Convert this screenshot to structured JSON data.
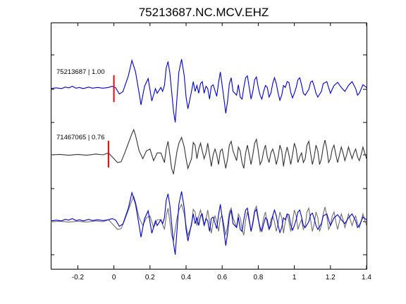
{
  "chart_data": {
    "type": "line",
    "title": "75213687.NC.MCV.EHZ",
    "xlabel": "",
    "ylabel": "",
    "xlim": [
      -0.35,
      1.4
    ],
    "x_ticks": [
      -0.2,
      0,
      0.2,
      0.4,
      0.6,
      0.8,
      1.0,
      1.2,
      1.4
    ],
    "x_tick_labels": [
      "-0.2",
      "0",
      "0.2",
      "0.4",
      "0.6",
      "0.8",
      "1",
      "1.2",
      "1.4"
    ],
    "grid": false,
    "colors": {
      "primary": "#0000cc",
      "secondary": "#333333",
      "overlay_secondary": "#707070",
      "pick": "#ff0000"
    },
    "traces": [
      {
        "label": "75213687 | 1.00",
        "color": "#0000cc",
        "pick_time": 0.0,
        "points": [
          [
            -0.35,
            0.02
          ],
          [
            -0.32,
            0.04
          ],
          [
            -0.29,
            0.02
          ],
          [
            -0.27,
            0.06
          ],
          [
            -0.25,
            0.04
          ],
          [
            -0.23,
            0.08
          ],
          [
            -0.21,
            0.03
          ],
          [
            -0.19,
            0.05
          ],
          [
            -0.17,
            0.02
          ],
          [
            -0.14,
            0.06
          ],
          [
            -0.12,
            0.03
          ],
          [
            -0.09,
            0.05
          ],
          [
            -0.06,
            0.03
          ],
          [
            -0.03,
            0.05
          ],
          [
            -0.01,
            0.08
          ],
          [
            0.01,
            0.04
          ],
          [
            0.03,
            -0.12
          ],
          [
            0.05,
            -0.06
          ],
          [
            0.08,
            0.35
          ],
          [
            0.1,
            0.75
          ],
          [
            0.12,
            0.45
          ],
          [
            0.14,
            -0.1
          ],
          [
            0.15,
            -0.4
          ],
          [
            0.17,
            0.08
          ],
          [
            0.19,
            0.28
          ],
          [
            0.21,
            -0.3
          ],
          [
            0.23,
            0.02
          ],
          [
            0.24,
            -0.1
          ],
          [
            0.26,
            0.05
          ],
          [
            0.27,
            -0.05
          ],
          [
            0.28,
            0.1
          ],
          [
            0.29,
            0.55
          ],
          [
            0.3,
            0.72
          ],
          [
            0.31,
            0.42
          ],
          [
            0.32,
            -0.05
          ],
          [
            0.33,
            -0.55
          ],
          [
            0.34,
            -0.85
          ],
          [
            0.35,
            -0.2
          ],
          [
            0.36,
            0.45
          ],
          [
            0.375,
            0.78
          ],
          [
            0.39,
            0.35
          ],
          [
            0.4,
            -0.2
          ],
          [
            0.41,
            -0.5
          ],
          [
            0.43,
            -0.05
          ],
          [
            0.44,
            0.2
          ],
          [
            0.45,
            -0.05
          ],
          [
            0.46,
            0.1
          ],
          [
            0.47,
            -0.1
          ],
          [
            0.48,
            0.15
          ],
          [
            0.49,
            0.2
          ],
          [
            0.5,
            -0.1
          ],
          [
            0.51,
            0.08
          ],
          [
            0.52,
            0.02
          ],
          [
            0.53,
            -0.25
          ],
          [
            0.54,
            0.08
          ],
          [
            0.55,
            0.12
          ],
          [
            0.57,
            -0.18
          ],
          [
            0.58,
            0.18
          ],
          [
            0.59,
            0.45
          ],
          [
            0.6,
            0.1
          ],
          [
            0.61,
            -0.25
          ],
          [
            0.62,
            -0.62
          ],
          [
            0.63,
            -0.3
          ],
          [
            0.64,
            0.15
          ],
          [
            0.65,
            0.3
          ],
          [
            0.66,
            -0.05
          ],
          [
            0.68,
            -0.15
          ],
          [
            0.69,
            0.12
          ],
          [
            0.7,
            -0.2
          ],
          [
            0.71,
            -0.25
          ],
          [
            0.72,
            0.05
          ],
          [
            0.73,
            0.3
          ],
          [
            0.74,
            0.35
          ],
          [
            0.75,
            0.05
          ],
          [
            0.76,
            -0.25
          ],
          [
            0.77,
            -0.05
          ],
          [
            0.78,
            0.25
          ],
          [
            0.79,
            0.32
          ],
          [
            0.8,
            0.05
          ],
          [
            0.81,
            -0.15
          ],
          [
            0.82,
            -0.25
          ],
          [
            0.83,
            -0.05
          ],
          [
            0.84,
            0.1
          ],
          [
            0.85,
            0.05
          ],
          [
            0.86,
            -0.2
          ],
          [
            0.87,
            -0.1
          ],
          [
            0.88,
            0.15
          ],
          [
            0.89,
            0.3
          ],
          [
            0.9,
            0.15
          ],
          [
            0.91,
            -0.1
          ],
          [
            0.92,
            -0.28
          ],
          [
            0.93,
            -0.15
          ],
          [
            0.94,
            0.1
          ],
          [
            0.95,
            0.05
          ],
          [
            0.96,
            0.2
          ],
          [
            0.97,
            0.18
          ],
          [
            0.98,
            -0.08
          ],
          [
            0.99,
            -0.22
          ],
          [
            1.0,
            -0.1
          ],
          [
            1.01,
            0.05
          ],
          [
            1.02,
            0.25
          ],
          [
            1.03,
            0.3
          ],
          [
            1.04,
            0.12
          ],
          [
            1.05,
            -0.1
          ],
          [
            1.06,
            -0.15
          ],
          [
            1.08,
            0.0
          ],
          [
            1.09,
            0.18
          ],
          [
            1.1,
            0.22
          ],
          [
            1.11,
            0.08
          ],
          [
            1.12,
            -0.1
          ],
          [
            1.13,
            -0.2
          ],
          [
            1.15,
            -0.05
          ],
          [
            1.16,
            0.15
          ],
          [
            1.18,
            0.2
          ],
          [
            1.19,
            0.05
          ],
          [
            1.2,
            -0.1
          ],
          [
            1.22,
            0.1
          ],
          [
            1.24,
            0.18
          ],
          [
            1.26,
            0.05
          ],
          [
            1.28,
            -0.05
          ],
          [
            1.3,
            0.1
          ],
          [
            1.32,
            0.2
          ],
          [
            1.34,
            0.02
          ],
          [
            1.35,
            -0.15
          ],
          [
            1.36,
            -0.1
          ],
          [
            1.38,
            0.12
          ],
          [
            1.4,
            0.05
          ]
        ]
      },
      {
        "label": "71467065 | 0.76",
        "color": "#333333",
        "pick_time": -0.03,
        "points": [
          [
            -0.35,
            0.0
          ],
          [
            -0.3,
            0.01
          ],
          [
            -0.25,
            -0.01
          ],
          [
            -0.2,
            0.01
          ],
          [
            -0.15,
            -0.01
          ],
          [
            -0.1,
            0.02
          ],
          [
            -0.06,
            0.0
          ],
          [
            -0.03,
            0.05
          ],
          [
            0.0,
            -0.1
          ],
          [
            0.02,
            -0.2
          ],
          [
            0.04,
            -0.18
          ],
          [
            0.06,
            0.05
          ],
          [
            0.08,
            0.3
          ],
          [
            0.1,
            0.55
          ],
          [
            0.11,
            0.65
          ],
          [
            0.12,
            0.5
          ],
          [
            0.14,
            0.1
          ],
          [
            0.16,
            -0.1
          ],
          [
            0.18,
            0.1
          ],
          [
            0.2,
            0.15
          ],
          [
            0.22,
            -0.15
          ],
          [
            0.24,
            0.05
          ],
          [
            0.26,
            0.05
          ],
          [
            0.28,
            -0.2
          ],
          [
            0.29,
            0.15
          ],
          [
            0.3,
            0.35
          ],
          [
            0.31,
            0.0
          ],
          [
            0.32,
            -0.35
          ],
          [
            0.33,
            -0.5
          ],
          [
            0.34,
            -0.2
          ],
          [
            0.35,
            0.1
          ],
          [
            0.36,
            0.3
          ],
          [
            0.375,
            0.45
          ],
          [
            0.39,
            0.2
          ],
          [
            0.4,
            -0.1
          ],
          [
            0.41,
            -0.35
          ],
          [
            0.43,
            -0.1
          ],
          [
            0.44,
            0.32
          ],
          [
            0.45,
            0.25
          ],
          [
            0.46,
            -0.1
          ],
          [
            0.47,
            0.15
          ],
          [
            0.48,
            0.3
          ],
          [
            0.49,
            0.1
          ],
          [
            0.5,
            -0.1
          ],
          [
            0.51,
            0.05
          ],
          [
            0.52,
            0.3
          ],
          [
            0.53,
            0.0
          ],
          [
            0.54,
            -0.3
          ],
          [
            0.55,
            0.0
          ],
          [
            0.56,
            0.15
          ],
          [
            0.57,
            0.0
          ],
          [
            0.58,
            -0.25
          ],
          [
            0.59,
            0.1
          ],
          [
            0.6,
            0.15
          ],
          [
            0.61,
            -0.1
          ],
          [
            0.62,
            -0.35
          ],
          [
            0.63,
            -0.1
          ],
          [
            0.64,
            0.25
          ],
          [
            0.65,
            0.35
          ],
          [
            0.66,
            0.1
          ],
          [
            0.68,
            -0.15
          ],
          [
            0.69,
            0.2
          ],
          [
            0.7,
            0.1
          ],
          [
            0.71,
            -0.2
          ],
          [
            0.72,
            -0.35
          ],
          [
            0.73,
            0.05
          ],
          [
            0.74,
            0.25
          ],
          [
            0.75,
            0.0
          ],
          [
            0.76,
            -0.25
          ],
          [
            0.77,
            0.0
          ],
          [
            0.78,
            0.3
          ],
          [
            0.79,
            0.4
          ],
          [
            0.8,
            0.1
          ],
          [
            0.81,
            -0.25
          ],
          [
            0.82,
            -0.15
          ],
          [
            0.83,
            0.1
          ],
          [
            0.84,
            0.25
          ],
          [
            0.85,
            -0.05
          ],
          [
            0.86,
            -0.2
          ],
          [
            0.87,
            0.05
          ],
          [
            0.88,
            0.15
          ],
          [
            0.89,
            0.0
          ],
          [
            0.9,
            -0.25
          ],
          [
            0.91,
            -0.05
          ],
          [
            0.92,
            0.25
          ],
          [
            0.93,
            0.1
          ],
          [
            0.94,
            -0.3
          ],
          [
            0.95,
            0.0
          ],
          [
            0.96,
            0.2
          ],
          [
            0.97,
            0.0
          ],
          [
            0.98,
            -0.25
          ],
          [
            0.99,
            0.0
          ],
          [
            1.0,
            0.3
          ],
          [
            1.01,
            0.15
          ],
          [
            1.02,
            -0.2
          ],
          [
            1.03,
            -0.05
          ],
          [
            1.04,
            0.05
          ],
          [
            1.05,
            -0.2
          ],
          [
            1.06,
            -0.1
          ],
          [
            1.07,
            0.25
          ],
          [
            1.08,
            0.35
          ],
          [
            1.09,
            0.05
          ],
          [
            1.1,
            -0.25
          ],
          [
            1.11,
            -0.05
          ],
          [
            1.12,
            0.25
          ],
          [
            1.13,
            0.1
          ],
          [
            1.14,
            -0.25
          ],
          [
            1.15,
            -0.1
          ],
          [
            1.16,
            0.2
          ],
          [
            1.17,
            0.38
          ],
          [
            1.18,
            0.15
          ],
          [
            1.19,
            -0.2
          ],
          [
            1.2,
            -0.1
          ],
          [
            1.21,
            0.15
          ],
          [
            1.22,
            0.25
          ],
          [
            1.23,
            0.0
          ],
          [
            1.24,
            -0.2
          ],
          [
            1.25,
            0.0
          ],
          [
            1.26,
            0.2
          ],
          [
            1.27,
            0.05
          ],
          [
            1.28,
            -0.15
          ],
          [
            1.29,
            0.0
          ],
          [
            1.3,
            0.2
          ],
          [
            1.31,
            0.05
          ],
          [
            1.32,
            -0.1
          ],
          [
            1.33,
            0.05
          ],
          [
            1.34,
            0.15
          ],
          [
            1.35,
            -0.05
          ],
          [
            1.36,
            -0.15
          ],
          [
            1.37,
            0.0
          ],
          [
            1.38,
            0.2
          ],
          [
            1.39,
            0.05
          ],
          [
            1.4,
            -0.1
          ]
        ]
      }
    ],
    "overlay": {
      "traces": [
        0,
        1
      ],
      "secondary_color": "#707070"
    }
  }
}
